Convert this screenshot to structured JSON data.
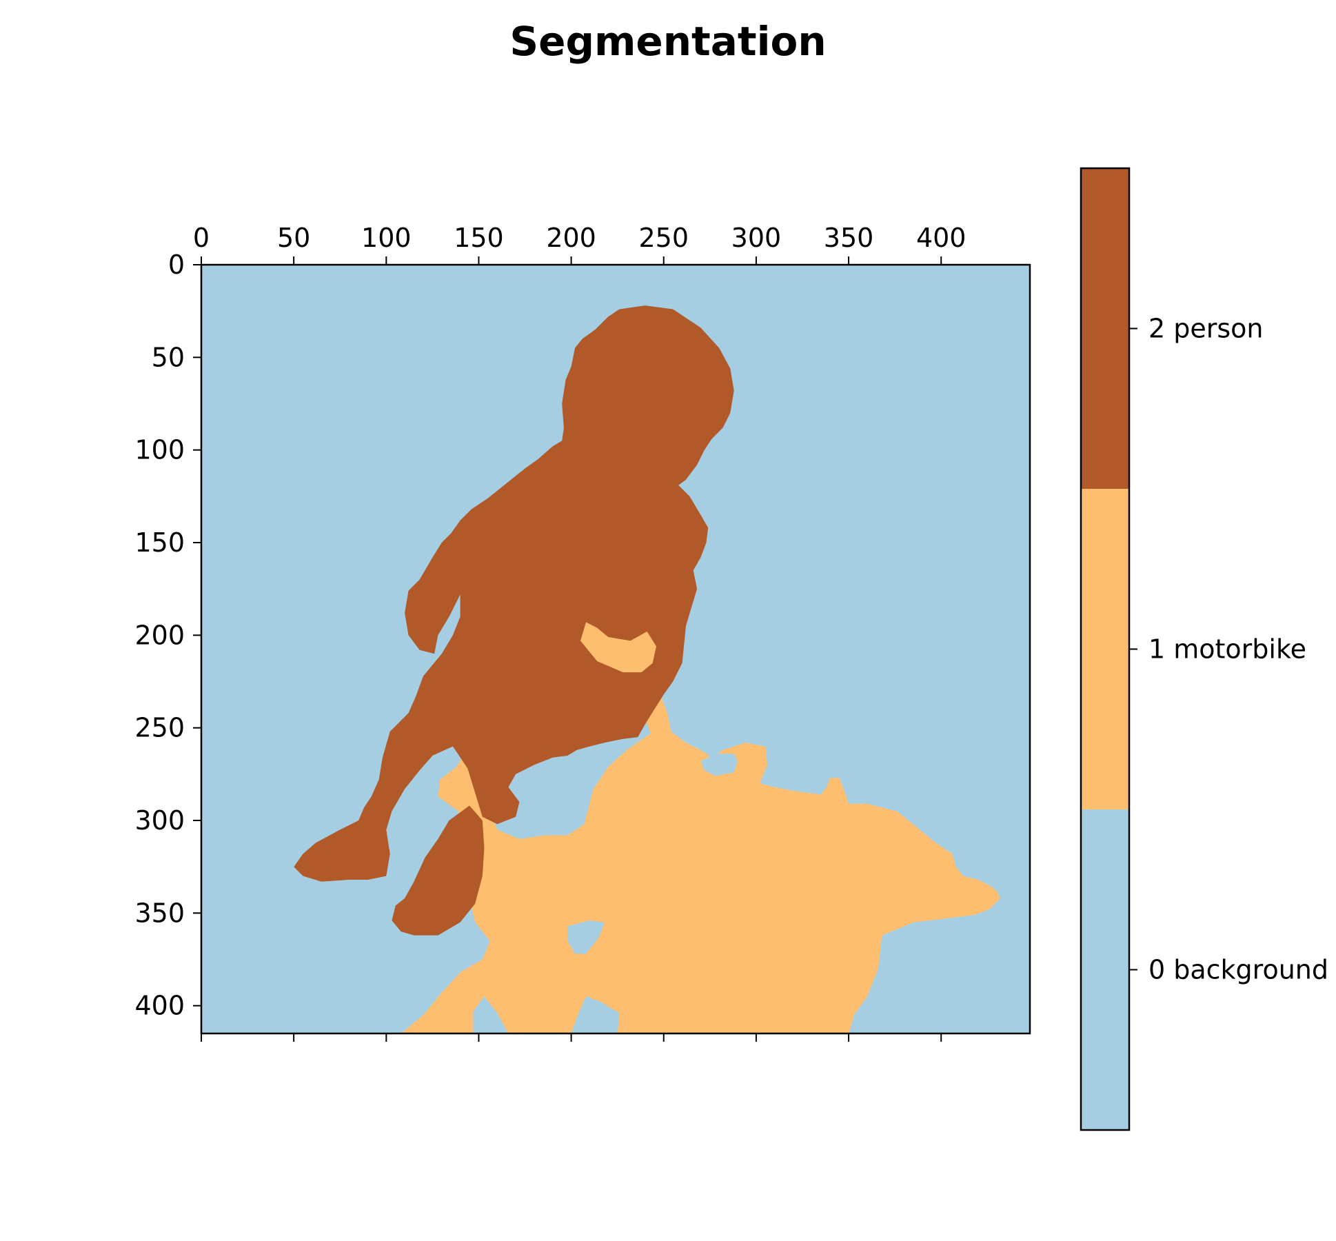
{
  "chart_data": {
    "type": "heatmap",
    "title": "Segmentation",
    "xlabel": "",
    "ylabel": "",
    "image_size": {
      "width": 448,
      "height": 415
    },
    "xlim": [
      0,
      448
    ],
    "ylim": [
      415,
      0
    ],
    "x_ticks": [
      0,
      50,
      100,
      150,
      200,
      250,
      300,
      350,
      400
    ],
    "y_ticks": [
      0,
      50,
      100,
      150,
      200,
      250,
      300,
      350,
      400
    ],
    "x_tick_position": "top",
    "classes": [
      {
        "id": 0,
        "name": "background",
        "label": "0 background",
        "color": "#a6cee3"
      },
      {
        "id": 1,
        "name": "motorbike",
        "label": "1 motorbike",
        "color": "#fdbf6f"
      },
      {
        "id": 2,
        "name": "person",
        "label": "2 person",
        "color": "#b15928"
      }
    ],
    "regions": [
      {
        "class": 1,
        "name": "motorbike",
        "polygon": [
          [
            108,
            415
          ],
          [
            120,
            405
          ],
          [
            130,
            393
          ],
          [
            140,
            382
          ],
          [
            152,
            375
          ],
          [
            156,
            365
          ],
          [
            148,
            355
          ],
          [
            145,
            342
          ],
          [
            148,
            318
          ],
          [
            139,
            295
          ],
          [
            128,
            287
          ],
          [
            129,
            278
          ],
          [
            138,
            271
          ],
          [
            146,
            258
          ],
          [
            151,
            262
          ],
          [
            155,
            268
          ],
          [
            154,
            290
          ],
          [
            160,
            305
          ],
          [
            172,
            310
          ],
          [
            186,
            308
          ],
          [
            198,
            308
          ],
          [
            207,
            302
          ],
          [
            212,
            283
          ],
          [
            220,
            271
          ],
          [
            230,
            262
          ],
          [
            240,
            255
          ],
          [
            243,
            253
          ],
          [
            240,
            245
          ],
          [
            236,
            228
          ],
          [
            232,
            220
          ],
          [
            226,
            220
          ],
          [
            210,
            211
          ],
          [
            204,
            198
          ],
          [
            208,
            193
          ],
          [
            218,
            200
          ],
          [
            230,
            202
          ],
          [
            240,
            198
          ],
          [
            246,
            205
          ],
          [
            244,
            214
          ],
          [
            246,
            226
          ],
          [
            252,
            242
          ],
          [
            254,
            252
          ],
          [
            262,
            258
          ],
          [
            270,
            262
          ],
          [
            276,
            266
          ],
          [
            282,
            262
          ],
          [
            294,
            258
          ],
          [
            305,
            260
          ],
          [
            306,
            270
          ],
          [
            302,
            280
          ],
          [
            310,
            282
          ],
          [
            320,
            284
          ],
          [
            335,
            286
          ],
          [
            338,
            282
          ],
          [
            340,
            277
          ],
          [
            345,
            277
          ],
          [
            348,
            285
          ],
          [
            350,
            291
          ],
          [
            360,
            291
          ],
          [
            376,
            295
          ],
          [
            386,
            303
          ],
          [
            397,
            312
          ],
          [
            406,
            318
          ],
          [
            408,
            325
          ],
          [
            412,
            330
          ],
          [
            420,
            332
          ],
          [
            426,
            335
          ],
          [
            430,
            338
          ],
          [
            432,
            342
          ],
          [
            426,
            348
          ],
          [
            418,
            351
          ],
          [
            402,
            353
          ],
          [
            385,
            355
          ],
          [
            378,
            358
          ],
          [
            368,
            362
          ],
          [
            366,
            380
          ],
          [
            360,
            395
          ],
          [
            353,
            405
          ],
          [
            350,
            415
          ],
          [
            225,
            415
          ],
          [
            226,
            404
          ],
          [
            216,
            398
          ],
          [
            208,
            395
          ],
          [
            204,
            404
          ],
          [
            200,
            415
          ],
          [
            166,
            415
          ],
          [
            160,
            404
          ],
          [
            153,
            395
          ],
          [
            147,
            403
          ],
          [
            147,
            415
          ]
        ]
      },
      {
        "class": 0,
        "name": "background",
        "polygon": [
          [
            198,
            357
          ],
          [
            210,
            354
          ],
          [
            218,
            355
          ],
          [
            215,
            363
          ],
          [
            208,
            372
          ],
          [
            202,
            372
          ],
          [
            198,
            365
          ]
        ]
      },
      {
        "class": 0,
        "name": "background",
        "polygon": [
          [
            270,
            268
          ],
          [
            278,
            264
          ],
          [
            288,
            264
          ],
          [
            290,
            268
          ],
          [
            288,
            274
          ],
          [
            278,
            276
          ],
          [
            272,
            273
          ]
        ]
      },
      {
        "class": 2,
        "name": "person",
        "polygon": [
          [
            226,
            24
          ],
          [
            240,
            22
          ],
          [
            255,
            24
          ],
          [
            270,
            34
          ],
          [
            280,
            45
          ],
          [
            286,
            56
          ],
          [
            288,
            68
          ],
          [
            286,
            80
          ],
          [
            282,
            88
          ],
          [
            276,
            94
          ],
          [
            272,
            100
          ],
          [
            268,
            108
          ],
          [
            262,
            116
          ],
          [
            258,
            119
          ],
          [
            264,
            125
          ],
          [
            270,
            135
          ],
          [
            274,
            142
          ],
          [
            273,
            150
          ],
          [
            270,
            158
          ],
          [
            266,
            165
          ],
          [
            268,
            175
          ],
          [
            265,
            185
          ],
          [
            262,
            195
          ],
          [
            260,
            215
          ],
          [
            255,
            225
          ],
          [
            250,
            232
          ],
          [
            245,
            240
          ],
          [
            240,
            248
          ],
          [
            236,
            255
          ],
          [
            228,
            256
          ],
          [
            218,
            258
          ],
          [
            210,
            260
          ],
          [
            203,
            262
          ],
          [
            198,
            265
          ],
          [
            190,
            266
          ],
          [
            180,
            270
          ],
          [
            170,
            275
          ],
          [
            166,
            282
          ],
          [
            172,
            290
          ],
          [
            170,
            298
          ],
          [
            160,
            302
          ],
          [
            152,
            298
          ],
          [
            148,
            285
          ],
          [
            144,
            272
          ],
          [
            136,
            260
          ],
          [
            125,
            265
          ],
          [
            118,
            273
          ],
          [
            110,
            283
          ],
          [
            103,
            295
          ],
          [
            100,
            305
          ],
          [
            102,
            318
          ],
          [
            100,
            330
          ],
          [
            90,
            332
          ],
          [
            80,
            332
          ],
          [
            65,
            333
          ],
          [
            55,
            330
          ],
          [
            50,
            325
          ],
          [
            55,
            318
          ],
          [
            62,
            312
          ],
          [
            75,
            305
          ],
          [
            85,
            300
          ],
          [
            88,
            293
          ],
          [
            92,
            287
          ],
          [
            96,
            278
          ],
          [
            98,
            266
          ],
          [
            102,
            252
          ],
          [
            112,
            242
          ],
          [
            116,
            233
          ],
          [
            120,
            222
          ],
          [
            130,
            210
          ],
          [
            136,
            200
          ],
          [
            140,
            190
          ],
          [
            140,
            178
          ],
          [
            134,
            190
          ],
          [
            128,
            200
          ],
          [
            126,
            210
          ],
          [
            118,
            208
          ],
          [
            112,
            200
          ],
          [
            110,
            188
          ],
          [
            112,
            176
          ],
          [
            118,
            170
          ],
          [
            125,
            158
          ],
          [
            130,
            150
          ],
          [
            135,
            145
          ],
          [
            140,
            138
          ],
          [
            146,
            132
          ],
          [
            155,
            126
          ],
          [
            165,
            118
          ],
          [
            175,
            110
          ],
          [
            182,
            105
          ],
          [
            190,
            98
          ],
          [
            195,
            95
          ],
          [
            196,
            88
          ],
          [
            195,
            75
          ],
          [
            197,
            62
          ],
          [
            200,
            55
          ],
          [
            202,
            45
          ],
          [
            206,
            40
          ],
          [
            213,
            35
          ],
          [
            220,
            28
          ]
        ]
      },
      {
        "class": 1,
        "name": "motorbike",
        "polygon": [
          [
            208,
            193
          ],
          [
            214,
            196
          ],
          [
            220,
            201
          ],
          [
            232,
            203
          ],
          [
            241,
            198
          ],
          [
            246,
            206
          ],
          [
            244,
            215
          ],
          [
            238,
            220
          ],
          [
            228,
            220
          ],
          [
            214,
            214
          ],
          [
            205,
            203
          ]
        ]
      },
      {
        "class": 2,
        "name": "person",
        "polygon": [
          [
            145,
            292
          ],
          [
            152,
            300
          ],
          [
            153,
            315
          ],
          [
            152,
            330
          ],
          [
            148,
            345
          ],
          [
            140,
            355
          ],
          [
            128,
            362
          ],
          [
            115,
            362
          ],
          [
            108,
            360
          ],
          [
            103,
            354
          ],
          [
            105,
            346
          ],
          [
            110,
            342
          ],
          [
            115,
            333
          ],
          [
            121,
            320
          ],
          [
            128,
            310
          ],
          [
            134,
            300
          ]
        ]
      }
    ]
  }
}
